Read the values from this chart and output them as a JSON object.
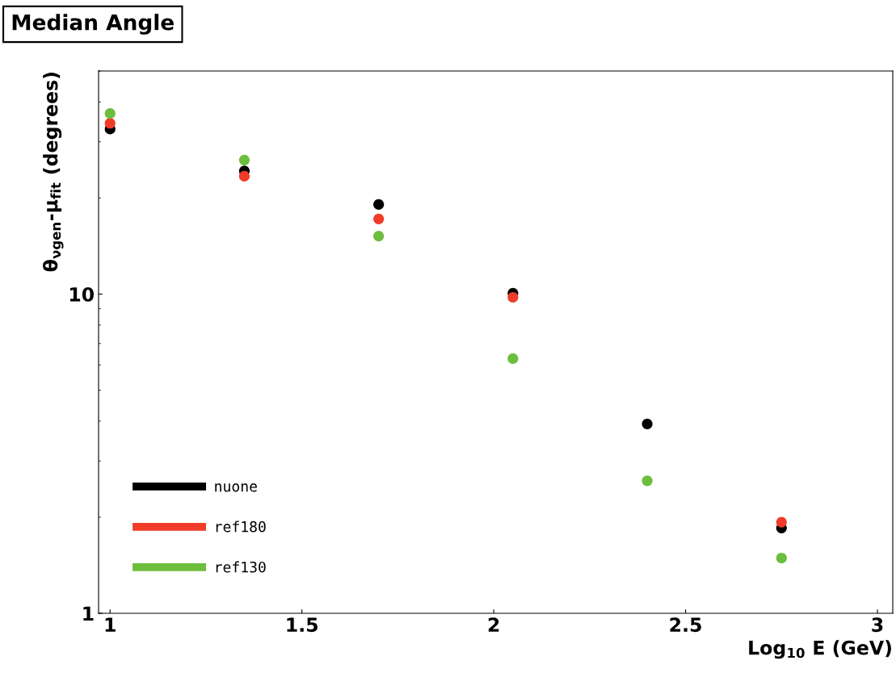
{
  "chart_data": {
    "type": "scatter",
    "title": "Median Angle",
    "xlabel": "Log$_{10}$ E (GeV)",
    "ylabel": "θ$_{νgen}$-μ$_{fit}$ (degrees)",
    "x": [
      1,
      1.35,
      1.7,
      2.05,
      2.4,
      2.75
    ],
    "series": [
      {
        "name": "nuone",
        "color": "#000000",
        "values": [
          32.9,
          24.3,
          19.1,
          10.06,
          3.92,
          1.85
        ]
      },
      {
        "name": "ref180",
        "color": "#f03c28",
        "values": [
          34.3,
          23.4,
          17.2,
          9.77,
          null,
          1.93
        ]
      },
      {
        "name": "ref130",
        "color": "#6cbe3c",
        "values": [
          36.8,
          26.3,
          15.2,
          6.28,
          2.6,
          1.49
        ]
      }
    ],
    "log": "y",
    "xlim": [
      0.97,
      3.04
    ],
    "ylim": [
      1,
      50
    ],
    "xticks": [
      1,
      1.5,
      2,
      2.5,
      3
    ],
    "yticks": [
      1,
      10
    ],
    "marker": "circle",
    "legend": "bottom left",
    "grid": false
  }
}
